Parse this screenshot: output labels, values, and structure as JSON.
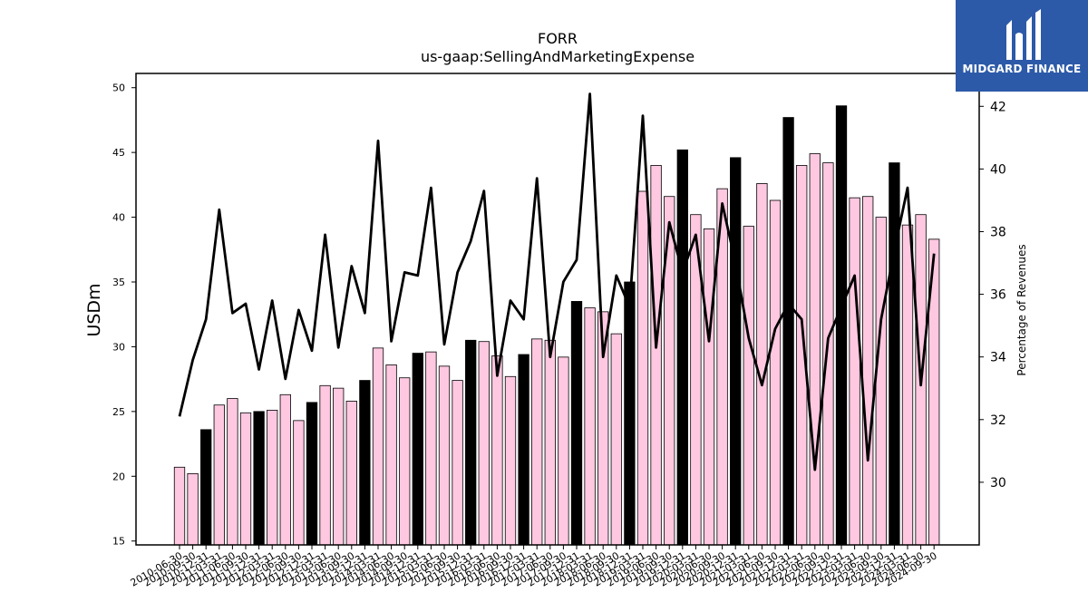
{
  "logo": {
    "text": "MIDGARD FINANCE",
    "color": "#2c5aa8"
  },
  "chart_data": {
    "type": "bar",
    "title": "FORR",
    "subtitle": "us-gaap:SellingAndMarketingExpense",
    "ylabel": "USDm",
    "y2label": "Percentage of Revenues",
    "ylim": [
      14.7,
      51.1
    ],
    "y2lim": [
      28.0,
      43.05
    ],
    "yticks": [
      15,
      20,
      25,
      30,
      35,
      40,
      45,
      50
    ],
    "y2ticks": [
      30,
      32,
      34,
      36,
      38,
      40,
      42
    ],
    "bar_colors": {
      "quarter": "#ffc8e1",
      "year_end": "#000000"
    },
    "line_color": "#000000",
    "categories": [
      "2010-06-30",
      "2010-09-30",
      "2010-12-31",
      "2011-03-31",
      "2011-06-30",
      "2011-09-30",
      "2011-12-31",
      "2012-03-31",
      "2012-06-30",
      "2012-09-30",
      "2012-12-31",
      "2013-03-31",
      "2013-06-30",
      "2013-09-30",
      "2013-12-31",
      "2014-03-31",
      "2014-06-30",
      "2014-09-30",
      "2014-12-31",
      "2015-03-31",
      "2015-06-30",
      "2015-09-30",
      "2015-12-31",
      "2016-03-31",
      "2016-06-30",
      "2016-09-30",
      "2016-12-31",
      "2017-03-31",
      "2017-06-30",
      "2017-09-30",
      "2017-12-31",
      "2018-03-31",
      "2018-06-30",
      "2018-09-30",
      "2018-12-31",
      "2019-03-31",
      "2019-06-30",
      "2019-09-30",
      "2019-12-31",
      "2020-03-31",
      "2020-06-30",
      "2020-09-30",
      "2020-12-31",
      "2021-03-31",
      "2021-06-30",
      "2021-09-30",
      "2021-12-31",
      "2022-03-31",
      "2022-06-30",
      "2022-09-30",
      "2022-12-31",
      "2023-03-31",
      "2023-06-30",
      "2023-09-30",
      "2023-12-31",
      "2024-03-31",
      "2024-06-30",
      "2024-09-30"
    ],
    "series": [
      {
        "type": "bar",
        "values": [
          20.7,
          20.2,
          23.6,
          25.5,
          26.0,
          24.9,
          25.0,
          25.1,
          26.3,
          24.3,
          25.7,
          27.0,
          26.8,
          25.8,
          27.4,
          29.9,
          28.6,
          27.6,
          29.5,
          29.6,
          28.5,
          27.4,
          30.5,
          30.4,
          29.3,
          27.7,
          29.4,
          30.6,
          30.5,
          29.2,
          33.5,
          33.0,
          32.7,
          31.0,
          35.0,
          42.0,
          44.0,
          41.6,
          45.2,
          40.2,
          39.1,
          42.2,
          44.6,
          39.3,
          42.6,
          41.3,
          47.7,
          44.0,
          44.9,
          44.2,
          48.6,
          41.5,
          41.6,
          40.0,
          44.2,
          39.4,
          40.2,
          38.3
        ]
      },
      {
        "type": "line",
        "axis": "right",
        "values": [
          32.1,
          33.9,
          35.2,
          38.7,
          35.4,
          35.7,
          33.6,
          35.8,
          33.3,
          35.5,
          34.2,
          37.9,
          34.3,
          36.9,
          35.4,
          40.9,
          34.5,
          36.7,
          36.6,
          39.4,
          34.4,
          36.7,
          37.7,
          39.3,
          33.4,
          35.8,
          35.2,
          39.7,
          34.0,
          36.4,
          37.1,
          42.4,
          34.0,
          36.6,
          35.6,
          41.7,
          34.3,
          38.3,
          36.7,
          37.9,
          34.5,
          38.9,
          37.0,
          34.6,
          33.1,
          34.9,
          35.7,
          35.2,
          30.4,
          34.6,
          35.6,
          36.6,
          30.7,
          35.2,
          37.4,
          39.4,
          33.1,
          37.3
        ]
      }
    ]
  }
}
